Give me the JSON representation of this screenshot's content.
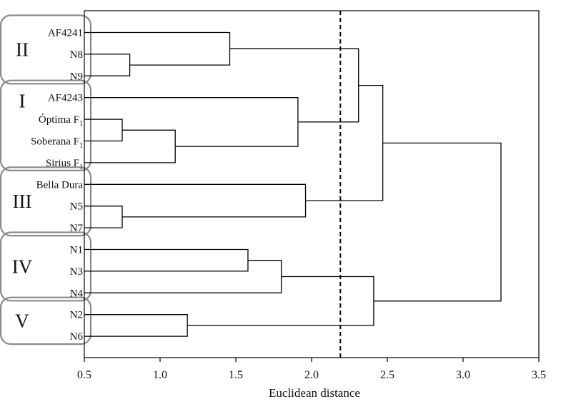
{
  "chart_data": {
    "type": "dendrogram",
    "orientation": "horizontal",
    "xlabel": "Euclidean distance",
    "xlim": [
      0.5,
      3.5
    ],
    "x_ticks": [
      "0.5",
      "1.0",
      "1.5",
      "2.0",
      "2.5",
      "3.0",
      "3.5"
    ],
    "threshold": 2.19,
    "leaves": [
      {
        "label": "AF4241",
        "sub": ""
      },
      {
        "label": "N8",
        "sub": ""
      },
      {
        "label": "N9",
        "sub": ""
      },
      {
        "label": "AF4243",
        "sub": ""
      },
      {
        "label": "Óptima F",
        "sub": "1"
      },
      {
        "label": "Soberana F",
        "sub": "1"
      },
      {
        "label": "Sirius F",
        "sub": "1"
      },
      {
        "label": "Bella Dura",
        "sub": ""
      },
      {
        "label": "N5",
        "sub": ""
      },
      {
        "label": "N7",
        "sub": ""
      },
      {
        "label": "N1",
        "sub": ""
      },
      {
        "label": "N3",
        "sub": ""
      },
      {
        "label": "N4",
        "sub": ""
      },
      {
        "label": "N2",
        "sub": ""
      },
      {
        "label": "N6",
        "sub": ""
      }
    ],
    "merges": [
      {
        "a": "L1",
        "b": "L2",
        "height": 0.8
      },
      {
        "a": "L4",
        "b": "L5",
        "height": 0.75
      },
      {
        "a": "L8",
        "b": "L9",
        "height": 0.75
      },
      {
        "a": "M1",
        "b": "L6",
        "height": 1.1
      },
      {
        "a": "L13",
        "b": "L14",
        "height": 1.18
      },
      {
        "a": "L0",
        "b": "M0",
        "height": 1.46
      },
      {
        "a": "L10",
        "b": "L11",
        "height": 1.58
      },
      {
        "a": "M6",
        "b": "L12",
        "height": 1.8
      },
      {
        "a": "L3",
        "b": "M3",
        "height": 1.91
      },
      {
        "a": "L7",
        "b": "M2",
        "height": 1.96
      },
      {
        "a": "M5",
        "b": "M8",
        "height": 2.31
      },
      {
        "a": "M7",
        "b": "M4",
        "height": 2.41
      },
      {
        "a": "M10",
        "b": "M9",
        "height": 2.47
      },
      {
        "a": "M12",
        "b": "M11",
        "height": 3.25
      }
    ],
    "groups": [
      {
        "label": "II",
        "first": 0,
        "last": 2
      },
      {
        "label": "I",
        "first": 3,
        "last": 6
      },
      {
        "label": "III",
        "first": 7,
        "last": 9
      },
      {
        "label": "IV",
        "first": 10,
        "last": 12
      },
      {
        "label": "V",
        "first": 13,
        "last": 14
      }
    ]
  }
}
